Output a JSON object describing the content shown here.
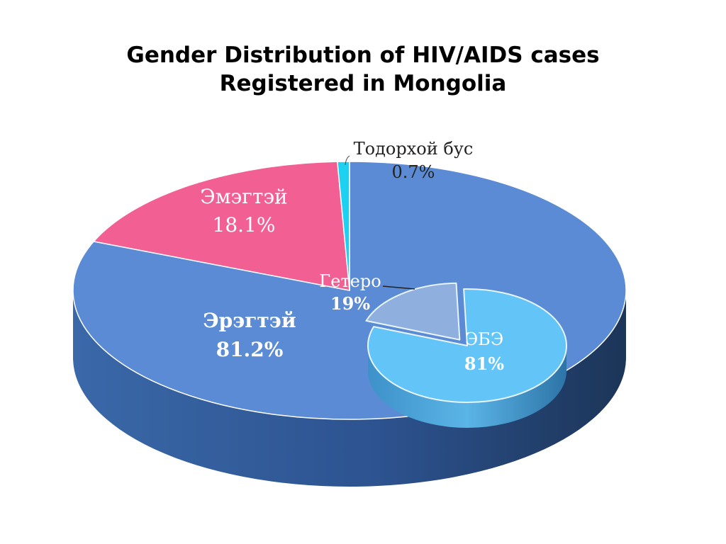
{
  "title": {
    "line1": "Gender Distribution of HIV/AIDS cases",
    "line2": "Registered in Mongolia"
  },
  "chart_data": [
    {
      "type": "pie",
      "style": "3d",
      "title": "Gender Distribution of HIV/AIDS cases Registered in Mongolia",
      "slices": [
        {
          "label": "Эрэгтэй",
          "value": 81.2,
          "value_label": "81.2%",
          "color": "#5b8bd4"
        },
        {
          "label": "Эмэгтэй",
          "value": 18.1,
          "value_label": "18.1%",
          "color": "#f25f93"
        },
        {
          "label": "Тодорхой бус",
          "value": 0.7,
          "value_label": "0.7%",
          "color": "#1fd1f0"
        }
      ]
    },
    {
      "type": "pie",
      "style": "3d-inset",
      "slices": [
        {
          "label": "ЭБЭ",
          "value": 81,
          "value_label": "81%",
          "color": "#62c4f7"
        },
        {
          "label": "Гетеро",
          "value": 19,
          "value_label": "19%",
          "color": "#8fb0de"
        }
      ]
    }
  ]
}
